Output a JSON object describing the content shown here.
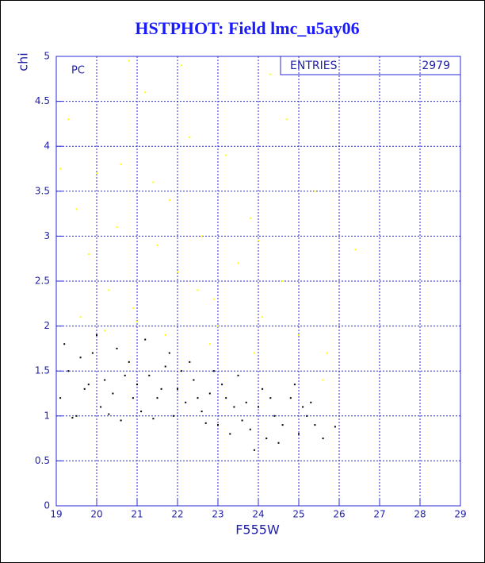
{
  "chart_data": {
    "type": "scatter",
    "title": "HSTPHOT: Field lmc_u5ay06",
    "x_label": "F555W",
    "y_label": "chi",
    "annotation": "PC",
    "stats": {
      "label": "ENTRIES",
      "value": 2979
    },
    "xlim": [
      19,
      29
    ],
    "ylim": [
      0,
      5
    ],
    "xticks": [
      19,
      20,
      21,
      22,
      23,
      24,
      25,
      26,
      27,
      28,
      29
    ],
    "yticks": [
      0,
      0.5,
      1,
      1.5,
      2,
      2.5,
      3,
      3.5,
      4,
      4.5,
      5
    ],
    "grid": true,
    "series": [
      {
        "color": "#000000",
        "x": [
          19.1,
          19.3,
          19.5,
          19.7,
          19.9,
          20.1,
          20.2,
          20.4,
          20.6,
          20.8,
          21.0,
          21.1,
          21.3,
          21.5,
          21.7,
          21.9,
          22.0,
          22.2,
          22.4,
          22.6,
          22.8,
          23.0,
          23.2,
          23.4,
          23.6,
          23.8,
          24.0,
          24.2,
          24.4,
          24.6,
          24.8,
          25.0,
          25.2,
          25.4,
          25.6,
          25.9,
          23.9,
          19.2,
          19.6,
          20.0,
          20.5,
          21.2,
          21.8,
          22.3,
          22.9,
          23.5,
          24.1,
          24.9,
          25.3,
          19.4,
          20.3,
          21.4,
          22.7,
          23.3,
          24.5,
          20.7,
          21.6,
          22.1,
          19.8,
          20.9,
          23.1,
          23.7,
          24.3,
          25.1,
          22.5
        ],
        "values": [
          1.2,
          1.5,
          1.0,
          1.3,
          1.7,
          1.1,
          1.4,
          1.25,
          0.95,
          1.6,
          1.35,
          1.05,
          1.45,
          1.2,
          1.55,
          1.0,
          1.3,
          1.15,
          1.4,
          1.05,
          1.25,
          0.9,
          1.2,
          1.1,
          0.95,
          0.85,
          1.1,
          0.75,
          1.0,
          0.9,
          1.2,
          0.8,
          1.0,
          0.9,
          0.75,
          0.88,
          0.62,
          1.8,
          1.65,
          1.9,
          1.75,
          1.85,
          1.7,
          1.6,
          1.5,
          1.45,
          1.3,
          1.35,
          1.15,
          0.98,
          1.02,
          0.97,
          0.92,
          0.8,
          0.7,
          1.45,
          1.3,
          1.5,
          1.35,
          1.2,
          1.35,
          1.15,
          1.2,
          1.1,
          1.2
        ]
      },
      {
        "color": "#ffff00",
        "x": [
          19.3,
          19.5,
          19.8,
          20.0,
          20.3,
          20.6,
          20.9,
          21.2,
          21.5,
          21.8,
          22.0,
          22.3,
          22.6,
          22.9,
          23.2,
          23.5,
          23.8,
          24.1,
          24.3,
          24.6,
          25.0,
          25.4,
          25.7,
          26.4,
          20.2,
          21.0,
          21.7,
          22.8,
          23.9,
          19.6,
          20.8,
          22.1,
          24.7,
          23.0,
          25.6,
          19.1,
          21.4,
          22.5,
          20.5,
          24.0
        ],
        "values": [
          4.3,
          3.3,
          2.8,
          3.7,
          2.4,
          3.8,
          2.2,
          4.6,
          2.9,
          3.4,
          2.6,
          4.1,
          3.0,
          2.3,
          3.9,
          2.7,
          3.2,
          2.1,
          4.8,
          2.5,
          1.9,
          3.5,
          1.7,
          2.85,
          1.95,
          2.05,
          1.9,
          1.8,
          1.7,
          2.1,
          4.95,
          4.9,
          4.3,
          2.0,
          1.4,
          3.75,
          3.6,
          2.4,
          3.1,
          2.95
        ]
      }
    ]
  }
}
